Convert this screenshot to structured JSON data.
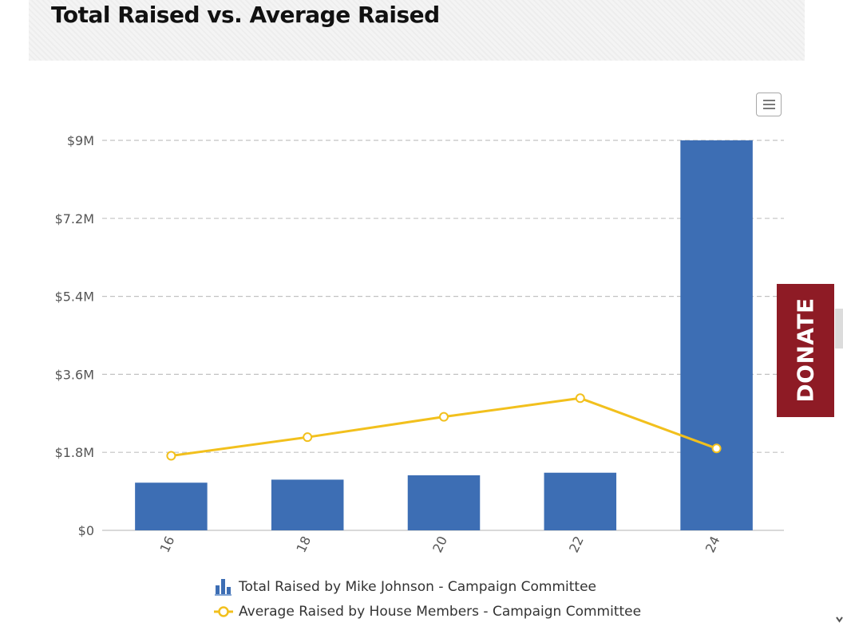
{
  "chart_data": {
    "type": "bar",
    "title": "Total Raised vs. Average Raised",
    "categories": [
      "16",
      "18",
      "20",
      "22",
      "24"
    ],
    "y_ticks": [
      "$0",
      "$1.8M",
      "$3.6M",
      "$5.4M",
      "$7.2M",
      "$9M"
    ],
    "ylim": [
      0,
      9000000
    ],
    "grid": true,
    "legend_position": "bottom",
    "series": [
      {
        "name": "Total Raised by Mike Johnson - Campaign Committee",
        "type": "bar",
        "color": "#3d6eb4",
        "values": [
          1100000,
          1170000,
          1270000,
          1330000,
          9000000
        ]
      },
      {
        "name": "Average Raised by House Members - Campaign Committee",
        "type": "line",
        "color": "#f2c01d",
        "values": [
          1720000,
          2150000,
          2620000,
          3050000,
          1890000
        ]
      }
    ]
  },
  "donate": {
    "label": "DONATE",
    "color": "#8e1b25"
  },
  "icons": {
    "menu": "hamburger-menu-icon",
    "bar_legend": "bar-chart-icon",
    "line_legend": "line-marker-icon"
  }
}
